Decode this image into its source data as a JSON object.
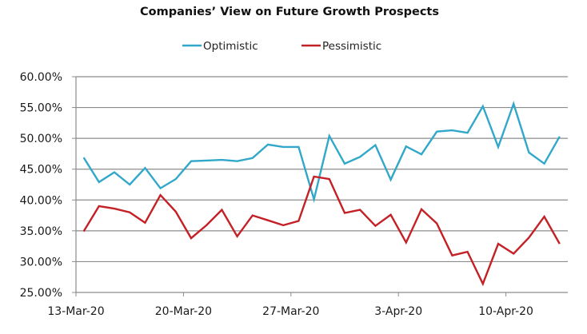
{
  "chart_data": {
    "type": "line",
    "title": "Companies’ View on Future Growth Prospects",
    "xlabel": "",
    "ylabel": "",
    "ylim": [
      0.25,
      0.6
    ],
    "yticks": [
      0.25,
      0.3,
      0.35,
      0.4,
      0.45,
      0.5,
      0.55,
      0.6
    ],
    "ytick_labels": [
      "25.00%",
      "30.00%",
      "35.00%",
      "40.00%",
      "45.00%",
      "50.00%",
      "55.00%",
      "60.00%"
    ],
    "xtick_labels": [
      "13-Mar-20",
      "20-Mar-20",
      "27-Mar-20",
      "3-Apr-20",
      "10-Apr-20"
    ],
    "xtick_days": [
      0,
      7,
      14,
      21,
      28
    ],
    "x_range_days": [
      0,
      32
    ],
    "x_start_day": 0.5,
    "grid": true,
    "legend_position": "top",
    "series": [
      {
        "name": "Optimistic",
        "color": "#31a8c9",
        "values": [
          0.469,
          0.429,
          0.445,
          0.425,
          0.452,
          0.419,
          0.434,
          0.463,
          0.464,
          0.465,
          0.463,
          0.468,
          0.49,
          0.486,
          0.486,
          0.401,
          0.504,
          0.459,
          0.47,
          0.489,
          0.433,
          0.487,
          0.474,
          0.511,
          0.513,
          0.509,
          0.552,
          0.486,
          0.556,
          0.477,
          0.459,
          0.503
        ]
      },
      {
        "name": "Pessimistic",
        "color": "#c42127",
        "values": [
          0.349,
          0.39,
          0.386,
          0.38,
          0.363,
          0.408,
          0.381,
          0.338,
          0.359,
          0.384,
          0.341,
          0.375,
          0.367,
          0.359,
          0.366,
          0.438,
          0.434,
          0.379,
          0.384,
          0.358,
          0.376,
          0.331,
          0.385,
          0.362,
          0.31,
          0.316,
          0.264,
          0.329,
          0.313,
          0.339,
          0.373,
          0.329
        ]
      }
    ]
  }
}
